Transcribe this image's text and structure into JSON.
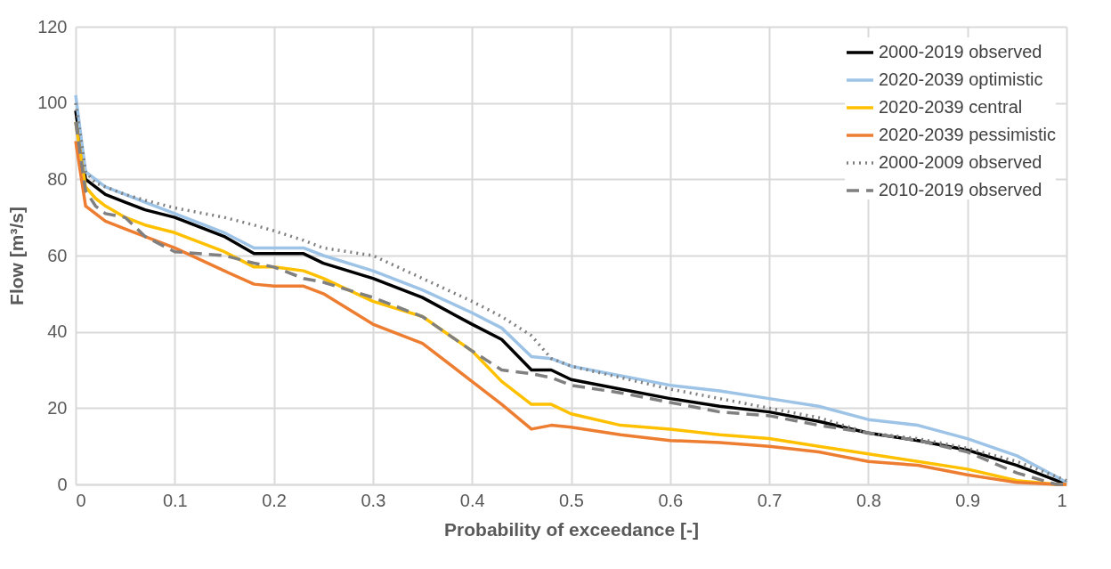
{
  "chart_data": {
    "type": "line",
    "xlabel": "Probability of exceedance [-]",
    "ylabel": "Flow [m³/s]",
    "x": [
      0,
      0.01,
      0.02,
      0.03,
      0.05,
      0.07,
      0.1,
      0.15,
      0.18,
      0.2,
      0.23,
      0.25,
      0.3,
      0.35,
      0.4,
      0.43,
      0.46,
      0.48,
      0.5,
      0.55,
      0.6,
      0.65,
      0.7,
      0.75,
      0.8,
      0.85,
      0.9,
      0.95,
      0.99,
      1
    ],
    "xlim": [
      0,
      1
    ],
    "xticks": [
      0,
      0.1,
      0.2,
      0.3,
      0.4,
      0.5,
      0.6,
      0.7,
      0.8,
      0.9,
      1
    ],
    "ylim": [
      0,
      120
    ],
    "yticks": [
      0,
      20,
      40,
      60,
      80,
      100,
      120
    ],
    "grid": true,
    "legend": "top right",
    "series": [
      {
        "name": "2000-2019 observed",
        "color": "#000000",
        "line_style": "solid",
        "values": [
          98,
          80,
          78,
          76,
          74,
          72,
          70,
          65,
          60.5,
          60.5,
          60.5,
          58,
          54,
          49,
          42,
          38,
          30,
          30,
          27.5,
          25,
          22.5,
          20.5,
          19,
          16.5,
          13.5,
          11.5,
          9,
          5,
          1,
          0.5
        ]
      },
      {
        "name": "2020-2039 optimistic",
        "color": "#9dc3e6",
        "line_style": "solid",
        "values": [
          102,
          82,
          80,
          78,
          76,
          74,
          71,
          66,
          62,
          62,
          62,
          60,
          56,
          51,
          45,
          41,
          33.5,
          33,
          31,
          28.5,
          26,
          24.5,
          22.5,
          20.5,
          17,
          15.5,
          12,
          7.5,
          2,
          0.5
        ]
      },
      {
        "name": "2020-2039 central",
        "color": "#ffc000",
        "line_style": "solid",
        "values": [
          95,
          78,
          75,
          73,
          70,
          68,
          66,
          61,
          57,
          57,
          56,
          54,
          48,
          44,
          35,
          27,
          21,
          21,
          18.5,
          15.5,
          14.5,
          13,
          12,
          10,
          8,
          6,
          4,
          1,
          0,
          0
        ]
      },
      {
        "name": "2020-2039 pessimistic",
        "color": "#ed7d31",
        "line_style": "solid",
        "values": [
          90,
          73,
          71,
          69,
          67,
          65,
          62,
          56,
          52.5,
          52,
          52,
          50,
          42,
          37,
          27,
          21,
          14.5,
          15.5,
          15,
          13,
          11.5,
          11,
          10,
          8.5,
          6,
          5,
          2.5,
          0.5,
          0,
          0
        ]
      },
      {
        "name": "2000-2009 observed",
        "color": "#7f7f7f",
        "line_style": "dotted",
        "values": [
          100,
          82,
          79,
          78,
          76,
          74.5,
          72.5,
          70,
          68,
          66.5,
          64,
          62,
          60,
          54,
          48,
          44,
          39,
          33,
          31,
          28,
          25,
          22.5,
          20,
          17.5,
          13.5,
          12,
          9.5,
          6,
          2,
          1
        ]
      },
      {
        "name": "2010-2019 observed",
        "color": "#808080",
        "line_style": "dashed",
        "values": [
          95,
          77,
          73,
          71,
          70,
          65,
          61,
          60,
          58,
          57,
          54,
          53,
          49,
          44,
          35,
          30,
          29,
          28,
          26,
          24,
          21.5,
          19,
          18,
          15.5,
          13.5,
          11.5,
          8.5,
          3,
          0,
          0
        ]
      }
    ]
  }
}
